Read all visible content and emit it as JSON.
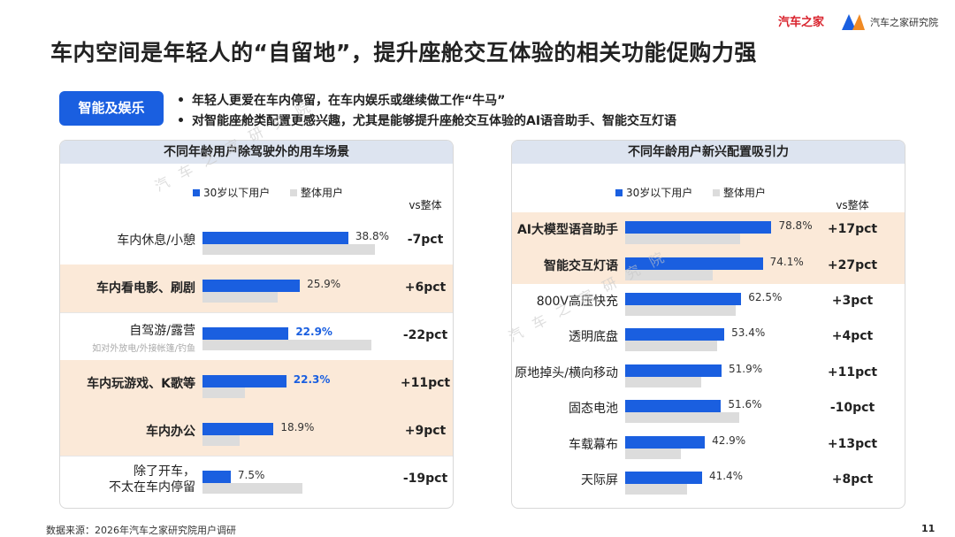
{
  "slide": {
    "title": "车内空间是年轻人的“自留地”，提升座舱交互体验的相关功能促购力强",
    "tag": "智能及娱乐",
    "bullets": [
      "年轻人更爱在车内停留，在车内娱乐或继续做工作“牛马”",
      "对智能座舱类配置更感兴趣，尤其是能够提升座舱交互体验的AI语音助手、智能交互灯语"
    ],
    "source": "数据来源：2026年汽车之家研究院用户调研",
    "page": "11",
    "watermark": "汽车之家研究院",
    "logo": {
      "brand": "汽车之家",
      "institute": "汽车之家研究院"
    }
  },
  "chart_data": [
    {
      "type": "bar",
      "orientation": "horizontal",
      "title": "不同年龄用户除驾驶外的用车场景",
      "categories": [
        "车内休息/小憩",
        "车内看电影、刷剧",
        "自驾游/露营",
        "车内玩游戏、K歌等",
        "车内办公",
        "除了开车，\n不太在车内停留"
      ],
      "category_notes": [
        null,
        null,
        "如对外放电/外接帐篷/钓鱼",
        null,
        null,
        null
      ],
      "highlight_categories": [
        1,
        3,
        4
      ],
      "series": [
        {
          "name": "30岁以下用户",
          "color": "#1a5fe0",
          "values": [
            38.8,
            25.9,
            22.9,
            22.3,
            18.9,
            7.5
          ],
          "value_labels": [
            "38.8%",
            "25.9%",
            "22.9%",
            "22.3%",
            "18.9%",
            "7.5%"
          ],
          "highlight_labels": [
            2,
            3
          ]
        },
        {
          "name": "整体用户",
          "color": "#dcdcdc",
          "values": [
            45.8,
            19.9,
            44.9,
            11.3,
            9.9,
            26.5
          ]
        }
      ],
      "diff": {
        "title": "vs整体",
        "values": [
          -7,
          6,
          -22,
          11,
          9,
          -19
        ],
        "value_labels": [
          "-7",
          "+6",
          "-22",
          "+11",
          "+9",
          "-19"
        ],
        "unit": "pct"
      }
    },
    {
      "type": "bar",
      "orientation": "horizontal",
      "title": "不同年龄用户新兴配置吸引力",
      "categories": [
        "AI大模型语音助手",
        "智能交互灯语",
        "800V高压快充",
        "透明底盘",
        "原地掉头/横向移动",
        "固态电池",
        "车载幕布",
        "天际屏"
      ],
      "highlight_categories": [
        0,
        1
      ],
      "series": [
        {
          "name": "30岁以下用户",
          "color": "#1a5fe0",
          "values": [
            78.8,
            74.1,
            62.5,
            53.4,
            51.9,
            51.6,
            42.9,
            41.4
          ],
          "value_labels": [
            "78.8%",
            "74.1%",
            "62.5%",
            "53.4%",
            "51.9%",
            "51.6%",
            "42.9%",
            "41.4%"
          ]
        },
        {
          "name": "整体用户",
          "color": "#dcdcdc",
          "values": [
            61.8,
            47.1,
            59.5,
            49.4,
            40.9,
            61.6,
            29.9,
            33.4
          ]
        }
      ],
      "diff": {
        "title": "vs整体",
        "values": [
          17,
          27,
          3,
          4,
          11,
          -10,
          13,
          8
        ],
        "value_labels": [
          "+17",
          "+27",
          "+3",
          "+4",
          "+11",
          "-10",
          "+13",
          "+8"
        ],
        "unit": "pct"
      }
    }
  ]
}
